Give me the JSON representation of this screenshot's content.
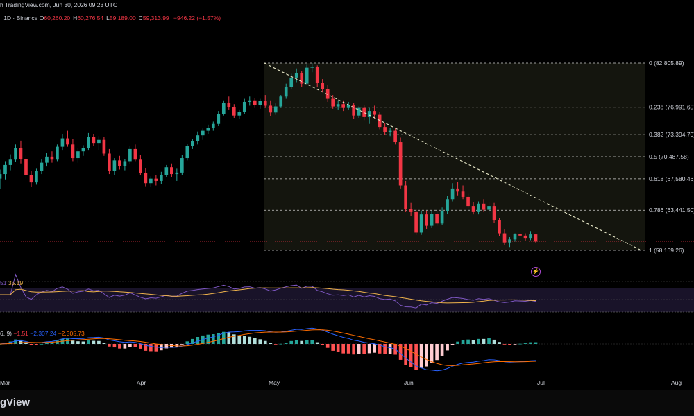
{
  "header": {
    "published_text": "h TradingView.com, Jun 30, 2026 09:23 UTC",
    "symbol_text": "· 1D · Binance",
    "ohlc": [
      {
        "label": "O",
        "value": "60,260.20"
      },
      {
        "label": "H",
        "value": "60,276.54"
      },
      {
        "label": "L",
        "value": "59,189.00"
      },
      {
        "label": "C",
        "value": "59,313.99"
      }
    ],
    "change": "−946.22 (−1.57%)"
  },
  "fib_levels": [
    {
      "ratio": "0",
      "label": "0 (82,805.89)",
      "price": 82805.89
    },
    {
      "ratio": "0.236",
      "label": "0.236 (76,991.65)",
      "price": 76991.65
    },
    {
      "ratio": "0.382",
      "label": "0.382 (73,394.70)",
      "price": 73394.7
    },
    {
      "ratio": "0.5",
      "label": "0.5 (70,487.58)",
      "price": 70487.58
    },
    {
      "ratio": "0.618",
      "label": "0.618 (67,580.46)",
      "price": 67580.46
    },
    {
      "ratio": "0.786",
      "label": "0.786 (63,441.50)",
      "price": 63441.5
    },
    {
      "ratio": "1",
      "label": "1 (58,169.26)",
      "price": 58169.26
    }
  ],
  "rsi": {
    "label_prefix": "51",
    "value": "35.19"
  },
  "macd": {
    "label_prefix": "6, 9)",
    "hist": "−1.51",
    "macd": "−2,307.24",
    "signal": "−2,305.73"
  },
  "x_axis": [
    "Mar",
    "Apr",
    "May",
    "Jun",
    "Jul",
    "Aug"
  ],
  "brand": "gView",
  "colors": {
    "up": "#26a69a",
    "down": "#f23645",
    "fib_fill": "#1a1d14",
    "rsi": "#7e57c2",
    "rsi_ma": "#f0b44c",
    "macd": "#2962ff",
    "signal": "#ff6d00"
  },
  "chart_data": {
    "type": "candlestick",
    "interval": "1D",
    "exchange": "Binance",
    "candles": [
      [
        67600,
        68800,
        66200,
        68200
      ],
      [
        68200,
        69900,
        67500,
        69400
      ],
      [
        69400,
        70800,
        68700,
        70100
      ],
      [
        70100,
        72100,
        69800,
        71600
      ],
      [
        71600,
        72600,
        69600,
        70200
      ],
      [
        70200,
        70700,
        67600,
        68100
      ],
      [
        68100,
        68600,
        66500,
        67100
      ],
      [
        67100,
        68900,
        66800,
        68600
      ],
      [
        68600,
        70200,
        68200,
        69700
      ],
      [
        69700,
        71000,
        69200,
        70500
      ],
      [
        70500,
        71200,
        69700,
        70100
      ],
      [
        70100,
        72100,
        69900,
        71800
      ],
      [
        71800,
        73500,
        71300,
        72900
      ],
      [
        72900,
        73900,
        71800,
        72100
      ],
      [
        72100,
        72800,
        69900,
        70300
      ],
      [
        70300,
        71600,
        69700,
        71200
      ],
      [
        71200,
        72000,
        70600,
        71600
      ],
      [
        71600,
        73600,
        71300,
        73100
      ],
      [
        73100,
        73500,
        71900,
        72300
      ],
      [
        72300,
        73200,
        71400,
        72700
      ],
      [
        72700,
        73100,
        70600,
        70900
      ],
      [
        70900,
        71500,
        68200,
        68600
      ],
      [
        68600,
        70300,
        68100,
        70000
      ],
      [
        70000,
        70600,
        68800,
        69300
      ],
      [
        69300,
        70200,
        68700,
        69900
      ],
      [
        69900,
        71900,
        69500,
        71500
      ],
      [
        71500,
        72100,
        69900,
        70100
      ],
      [
        70100,
        70700,
        68100,
        68300
      ],
      [
        68300,
        69000,
        66600,
        67000
      ],
      [
        67000,
        67900,
        66500,
        67600
      ],
      [
        67600,
        68100,
        66700,
        67300
      ],
      [
        67300,
        68500,
        66900,
        68100
      ],
      [
        68100,
        69400,
        67800,
        69100
      ],
      [
        69100,
        69600,
        67800,
        68200
      ],
      [
        68200,
        68900,
        67300,
        68400
      ],
      [
        68400,
        70700,
        68100,
        70300
      ],
      [
        70300,
        72200,
        70000,
        71900
      ],
      [
        71900,
        72800,
        71500,
        72500
      ],
      [
        72500,
        73800,
        72100,
        73300
      ],
      [
        73300,
        74200,
        72700,
        73900
      ],
      [
        73900,
        74700,
        73500,
        74300
      ],
      [
        74300,
        75100,
        73900,
        74800
      ],
      [
        74800,
        76500,
        74500,
        76100
      ],
      [
        76100,
        77900,
        75900,
        77600
      ],
      [
        77600,
        78400,
        76700,
        77000
      ],
      [
        77000,
        77400,
        75600,
        75900
      ],
      [
        75900,
        76700,
        75500,
        76400
      ],
      [
        76400,
        78100,
        76100,
        77700
      ],
      [
        77700,
        78400,
        77200,
        77900
      ],
      [
        77900,
        78200,
        76900,
        77300
      ],
      [
        77300,
        78100,
        76800,
        77800
      ],
      [
        77800,
        78600,
        76900,
        77200
      ],
      [
        77200,
        77900,
        75800,
        76300
      ],
      [
        76300,
        77500,
        76000,
        77100
      ],
      [
        77100,
        78600,
        76900,
        78400
      ],
      [
        78400,
        80100,
        78100,
        79700
      ],
      [
        79700,
        81400,
        79400,
        80900
      ],
      [
        80900,
        82100,
        80300,
        81500
      ],
      [
        81500,
        81800,
        79700,
        80100
      ],
      [
        80100,
        82600,
        79900,
        82200
      ],
      [
        82200,
        82806,
        81600,
        82300
      ],
      [
        82300,
        82500,
        79700,
        80200
      ],
      [
        80200,
        80700,
        79000,
        79400
      ],
      [
        79400,
        79900,
        77700,
        78100
      ],
      [
        78100,
        78600,
        76800,
        77100
      ],
      [
        77100,
        77900,
        76700,
        77400
      ],
      [
        77400,
        77900,
        76500,
        76900
      ],
      [
        76900,
        77700,
        76700,
        77300
      ],
      [
        77300,
        77600,
        75500,
        75900
      ],
      [
        75900,
        77100,
        75600,
        76900
      ],
      [
        76900,
        77300,
        75300,
        75700
      ],
      [
        75700,
        76900,
        74800,
        76500
      ],
      [
        76500,
        77200,
        75500,
        76000
      ],
      [
        76000,
        76400,
        74100,
        74400
      ],
      [
        74400,
        74900,
        73400,
        73700
      ],
      [
        73700,
        74300,
        73200,
        73900
      ],
      [
        73900,
        74200,
        72100,
        72400
      ],
      [
        72400,
        73000,
        66300,
        66700
      ],
      [
        66700,
        67300,
        63200,
        63600
      ],
      [
        63600,
        64400,
        62700,
        63200
      ],
      [
        63200,
        63600,
        60200,
        60500
      ],
      [
        60500,
        63400,
        60200,
        62900
      ],
      [
        62900,
        63300,
        61000,
        61400
      ],
      [
        61400,
        63400,
        61100,
        63000
      ],
      [
        63000,
        63300,
        61400,
        61700
      ],
      [
        61700,
        63800,
        61500,
        63300
      ],
      [
        63300,
        65300,
        63000,
        64900
      ],
      [
        64900,
        67000,
        64600,
        66300
      ],
      [
        66300,
        67200,
        65400,
        65900
      ],
      [
        65900,
        66700,
        64900,
        65200
      ],
      [
        65200,
        65600,
        63700,
        64000
      ],
      [
        64000,
        64500,
        62900,
        63200
      ],
      [
        63200,
        64600,
        62900,
        64300
      ],
      [
        64300,
        64900,
        63200,
        63500
      ],
      [
        63500,
        64500,
        62900,
        64000
      ],
      [
        64000,
        64400,
        61800,
        62100
      ],
      [
        62100,
        62400,
        60000,
        60400
      ],
      [
        60400,
        60900,
        58900,
        59200
      ],
      [
        59200,
        59900,
        58600,
        59600
      ],
      [
        59600,
        60400,
        59300,
        60300
      ],
      [
        60300,
        60800,
        59700,
        60100
      ],
      [
        60100,
        60400,
        59400,
        59800
      ],
      [
        59800,
        60700,
        59500,
        60260
      ],
      [
        60260,
        60277,
        59189,
        59314
      ]
    ]
  }
}
